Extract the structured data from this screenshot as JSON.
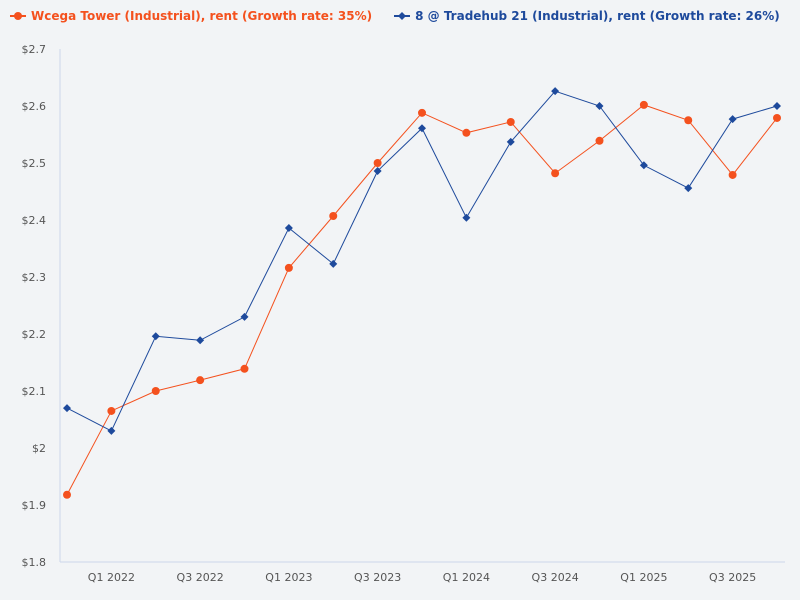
{
  "chart_data": {
    "type": "line",
    "title": "",
    "xlabel": "",
    "ylabel": "",
    "ylim": [
      1.8,
      2.7
    ],
    "y_ticks": [
      "$1.8",
      "$1.9",
      "$2",
      "$2.1",
      "$2.2",
      "$2.3",
      "$2.4",
      "$2.5",
      "$2.6",
      "$2.7"
    ],
    "y_tick_values": [
      1.8,
      1.9,
      2.0,
      2.1,
      2.2,
      2.3,
      2.4,
      2.5,
      2.6,
      2.7
    ],
    "x": [
      "Q4 2021",
      "Q1 2022",
      "Q2 2022",
      "Q3 2022",
      "Q4 2022",
      "Q1 2023",
      "Q2 2023",
      "Q3 2023",
      "Q4 2023",
      "Q1 2024",
      "Q2 2024",
      "Q3 2024",
      "Q4 2024",
      "Q1 2025",
      "Q2 2025",
      "Q3 2025",
      "Q4 2025"
    ],
    "x_tick_labels": [
      "Q1 2022",
      "Q3 2022",
      "Q1 2023",
      "Q3 2023",
      "Q1 2024",
      "Q3 2024",
      "Q1 2025",
      "Q3 2025"
    ],
    "grid": false,
    "legend_position": "top-left",
    "series": [
      {
        "name": "Wcega Tower (Industrial), rent (Growth rate: 35%)",
        "color": "#f4511e",
        "marker": "circle",
        "values": [
          1.918,
          2.065,
          2.1,
          2.119,
          2.139,
          2.316,
          2.407,
          2.5,
          2.588,
          2.553,
          2.572,
          2.482,
          2.539,
          2.602,
          2.575,
          2.479,
          2.579
        ]
      },
      {
        "name": "8 @ Tradehub 21 (Industrial), rent (Growth rate: 26%)",
        "color": "#1e4a9c",
        "marker": "diamond",
        "values": [
          2.07,
          2.03,
          2.196,
          2.189,
          2.23,
          2.386,
          2.323,
          2.486,
          2.561,
          2.404,
          2.537,
          2.626,
          2.6,
          2.496,
          2.456,
          2.577,
          2.6
        ]
      }
    ]
  }
}
